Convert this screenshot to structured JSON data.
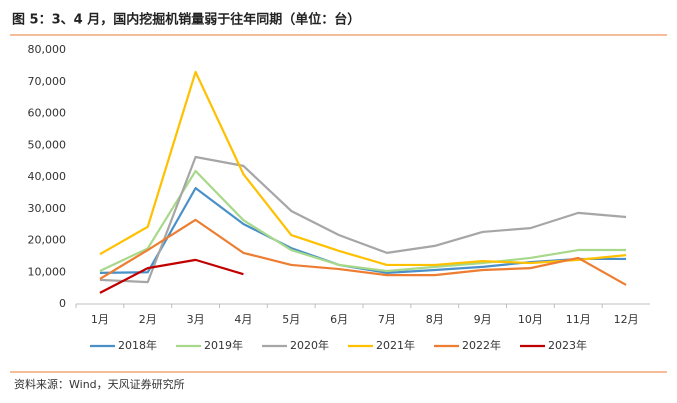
{
  "chart_data": {
    "type": "line",
    "title": "图 5：3、4 月，国内挖掘机销量弱于往年同期（单位：台）",
    "source": "资料来源：Wind，天风证券研究所",
    "categories": [
      "1月",
      "2月",
      "3月",
      "4月",
      "5月",
      "6月",
      "7月",
      "8月",
      "9月",
      "10月",
      "11月",
      "12月"
    ],
    "ylim": [
      0,
      80000
    ],
    "yticks": [
      0,
      {
        "value": 10000,
        "label": "10,000"
      },
      {
        "value": 20000,
        "label": "20,000"
      },
      {
        "value": 30000,
        "label": "30,000"
      },
      {
        "value": 40000,
        "label": "40,000"
      },
      {
        "value": 50000,
        "label": "50,000"
      },
      {
        "value": 60000,
        "label": "60,000"
      },
      {
        "value": 70000,
        "label": "70,000"
      },
      {
        "value": 80000,
        "label": "80,000"
      }
    ],
    "grid": false,
    "legend": "bottom",
    "series": [
      {
        "name": "2018年",
        "color": "#4a90c8",
        "values": [
          9800,
          10000,
          36500,
          25200,
          17600,
          12300,
          9800,
          10700,
          11700,
          13200,
          14200,
          14200
        ]
      },
      {
        "name": "2019年",
        "color": "#a8d98a",
        "values": [
          10400,
          17500,
          41900,
          26400,
          17000,
          12300,
          10400,
          11700,
          12900,
          14500,
          17000,
          17000
        ]
      },
      {
        "name": "2020年",
        "color": "#a6a6a6",
        "values": [
          7600,
          6900,
          46300,
          43500,
          29300,
          21700,
          16100,
          18300,
          22700,
          23900,
          28700,
          27400
        ]
      },
      {
        "name": "2021年",
        "color": "#ffc000",
        "values": [
          15700,
          24300,
          73100,
          40900,
          21700,
          16700,
          12300,
          12300,
          13500,
          12900,
          13900,
          15400
        ]
      },
      {
        "name": "2022年",
        "color": "#ed7d31",
        "values": [
          7900,
          17000,
          26500,
          16100,
          12300,
          11000,
          9100,
          9100,
          10700,
          11300,
          14500,
          6000
        ]
      },
      {
        "name": "2023年",
        "color": "#c00000",
        "values": [
          3500,
          11300,
          13900,
          9400,
          null,
          null,
          null,
          null,
          null,
          null,
          null,
          null
        ]
      }
    ]
  }
}
